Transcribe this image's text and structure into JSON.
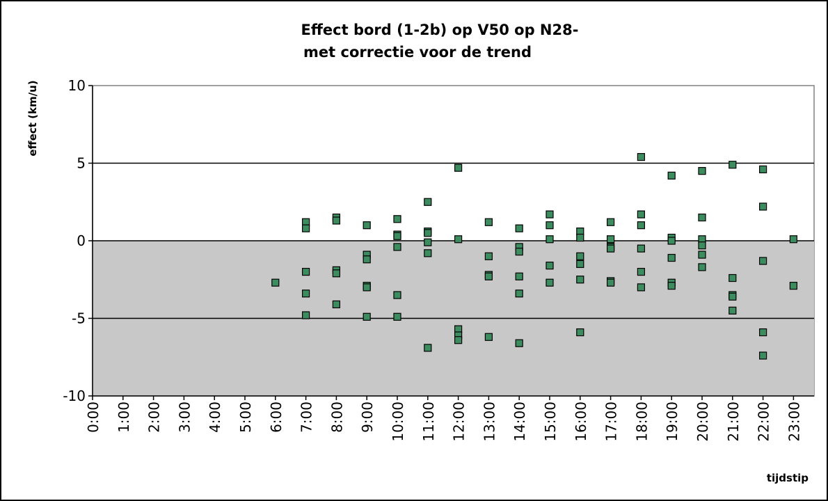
{
  "chart_data": {
    "type": "scatter",
    "title": [
      "Effect bord (1-2b) op V50 op N28-",
      "met correctie voor de trend"
    ],
    "y_label": "effect (km/u)",
    "x_label": "tijdstip",
    "categories": [
      "0:00",
      "1:00",
      "2:00",
      "3:00",
      "4:00",
      "5:00",
      "6:00",
      "7:00",
      "8:00",
      "9:00",
      "10:00",
      "11:00",
      "12:00",
      "13:00",
      "14:00",
      "15:00",
      "16:00",
      "17:00",
      "18:00",
      "19:00",
      "20:00",
      "21:00",
      "22:00",
      "23:00"
    ],
    "ylim": [
      -10,
      10
    ],
    "yticks": [
      -10,
      -5,
      0,
      5,
      10
    ],
    "grid": true,
    "series": [
      {
        "color": "#3c8c5f",
        "x": [
          "6:00",
          "7:00",
          "7:00",
          "7:00",
          "7:00",
          "7:00",
          "8:00",
          "8:00",
          "8:00",
          "8:00",
          "8:00",
          "9:00",
          "9:00",
          "9:00",
          "9:00",
          "9:00",
          "9:00",
          "10:00",
          "10:00",
          "10:00",
          "10:00",
          "10:00",
          "10:00",
          "11:00",
          "11:00",
          "11:00",
          "11:00",
          "11:00",
          "11:00",
          "12:00",
          "12:00",
          "12:00",
          "12:00",
          "12:00",
          "13:00",
          "13:00",
          "13:00",
          "13:00",
          "13:00",
          "14:00",
          "14:00",
          "14:00",
          "14:00",
          "14:00",
          "14:00",
          "15:00",
          "15:00",
          "15:00",
          "15:00",
          "15:00",
          "16:00",
          "16:00",
          "16:00",
          "16:00",
          "16:00",
          "16:00",
          "17:00",
          "17:00",
          "17:00",
          "17:00",
          "17:00",
          "17:00",
          "18:00",
          "18:00",
          "18:00",
          "18:00",
          "18:00",
          "18:00",
          "19:00",
          "19:00",
          "19:00",
          "19:00",
          "19:00",
          "19:00",
          "20:00",
          "20:00",
          "20:00",
          "20:00",
          "20:00",
          "20:00",
          "21:00",
          "21:00",
          "21:00",
          "21:00",
          "21:00",
          "22:00",
          "22:00",
          "22:00",
          "22:00",
          "22:00",
          "23:00",
          "23:00"
        ],
        "values": [
          -2.7,
          1.2,
          0.8,
          -2.0,
          -3.4,
          -4.8,
          1.5,
          1.3,
          -1.9,
          -2.1,
          -4.1,
          1.0,
          -0.9,
          -1.2,
          -2.9,
          -3.0,
          -4.9,
          1.4,
          0.4,
          0.3,
          -0.4,
          -3.5,
          -4.9,
          2.5,
          0.6,
          0.5,
          -0.1,
          -0.8,
          -6.9,
          4.7,
          0.1,
          -5.7,
          -6.1,
          -6.4,
          1.2,
          -1.0,
          -2.2,
          -2.3,
          -6.2,
          0.8,
          -0.4,
          -0.7,
          -2.3,
          -3.4,
          -6.6,
          1.7,
          1.0,
          0.1,
          -1.6,
          -2.7,
          0.6,
          0.2,
          -1.0,
          -1.5,
          -2.5,
          -5.9,
          1.2,
          0.1,
          -0.4,
          -0.5,
          -2.6,
          -2.7,
          5.4,
          1.7,
          1.0,
          -0.5,
          -2.0,
          -3.0,
          4.2,
          0.2,
          0.0,
          -1.1,
          -2.7,
          -2.9,
          4.5,
          1.5,
          0.1,
          -0.3,
          -0.9,
          -1.7,
          4.9,
          -2.4,
          -3.5,
          -3.6,
          -4.5,
          4.6,
          2.2,
          -1.3,
          -5.9,
          -7.4,
          0.1,
          -2.9
        ]
      }
    ]
  }
}
